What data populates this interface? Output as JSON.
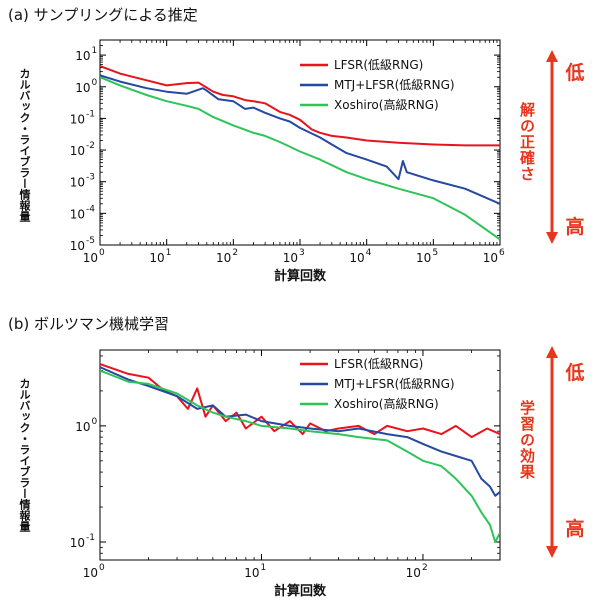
{
  "panels": [
    {
      "title": "(a) サンプリングによる推定",
      "side_label": "解の正確さ",
      "low_label": "低",
      "high_label": "高"
    },
    {
      "title": "(b) ボルツマン機械学習",
      "side_label": "学習の効果",
      "low_label": "低",
      "high_label": "高"
    }
  ],
  "chart_data": [
    {
      "type": "line",
      "xlabel": "計算回数",
      "ylabel": "カルバック・ライブラー情報量",
      "xscale": "log",
      "yscale": "log",
      "xlim": [
        1,
        1000000
      ],
      "ylim": [
        1e-05,
        30
      ],
      "x_ticks": [
        {
          "value": 1,
          "base": "10",
          "exp": "0"
        },
        {
          "value": 10,
          "base": "10",
          "exp": "1"
        },
        {
          "value": 100,
          "base": "10",
          "exp": "2"
        },
        {
          "value": 1000,
          "base": "10",
          "exp": "3"
        },
        {
          "value": 10000,
          "base": "10",
          "exp": "4"
        },
        {
          "value": 100000,
          "base": "10",
          "exp": "5"
        },
        {
          "value": 1000000,
          "base": "10",
          "exp": "6"
        }
      ],
      "y_ticks": [
        {
          "value": 10,
          "base": "10",
          "exp": "1"
        },
        {
          "value": 1,
          "base": "10",
          "exp": "0"
        },
        {
          "value": 0.1,
          "base": "10",
          "exp": "-1"
        },
        {
          "value": 0.01,
          "base": "10",
          "exp": "-2"
        },
        {
          "value": 0.001,
          "base": "10",
          "exp": "-3"
        },
        {
          "value": 0.0001,
          "base": "10",
          "exp": "-4"
        },
        {
          "value": 1e-05,
          "base": "10",
          "exp": "-5"
        }
      ],
      "legend_position": "top-right",
      "series": [
        {
          "name": "LFSR(低級RNG)",
          "color": "#e8141c",
          "x": [
            1,
            2,
            5,
            10,
            20,
            30,
            50,
            70,
            100,
            150,
            200,
            300,
            500,
            700,
            1000,
            1500,
            2000,
            3000,
            5000,
            10000,
            30000,
            100000,
            300000,
            1000000
          ],
          "y": [
            4.5,
            2.6,
            1.6,
            1.1,
            1.3,
            1.35,
            0.7,
            0.55,
            0.5,
            0.38,
            0.35,
            0.3,
            0.16,
            0.13,
            0.09,
            0.045,
            0.035,
            0.028,
            0.025,
            0.02,
            0.017,
            0.015,
            0.014,
            0.014
          ]
        },
        {
          "name": "MTJ+LFSR(低級RNG)",
          "color": "#2549a0",
          "x": [
            1,
            2,
            5,
            10,
            20,
            35,
            40,
            60,
            100,
            150,
            200,
            300,
            500,
            700,
            1000,
            2000,
            3000,
            5000,
            10000,
            20000,
            30000,
            35000,
            40000,
            100000,
            300000,
            1000000
          ],
          "y": [
            2.3,
            1.45,
            0.9,
            0.7,
            0.6,
            0.9,
            0.75,
            0.4,
            0.35,
            0.2,
            0.22,
            0.15,
            0.1,
            0.08,
            0.05,
            0.025,
            0.015,
            0.008,
            0.005,
            0.003,
            0.0012,
            0.0045,
            0.002,
            0.0011,
            0.0006,
            0.0002
          ]
        },
        {
          "name": "Xoshiro(高級RNG)",
          "color": "#2fc45a",
          "x": [
            1,
            2,
            5,
            10,
            20,
            30,
            50,
            100,
            200,
            300,
            500,
            1000,
            2000,
            5000,
            10000,
            30000,
            100000,
            300000,
            1000000
          ],
          "y": [
            2.0,
            1.1,
            0.55,
            0.35,
            0.25,
            0.2,
            0.11,
            0.06,
            0.035,
            0.028,
            0.018,
            0.009,
            0.005,
            0.002,
            0.0012,
            0.0006,
            0.0003,
            9e-05,
            1.5e-05
          ]
        }
      ]
    },
    {
      "type": "line",
      "xlabel": "計算回数",
      "ylabel": "カルバック・ライブラー情報量",
      "xscale": "log",
      "yscale": "log",
      "xlim": [
        1,
        300
      ],
      "ylim": [
        0.07,
        4.5
      ],
      "x_ticks": [
        {
          "value": 1,
          "base": "10",
          "exp": "0"
        },
        {
          "value": 10,
          "base": "10",
          "exp": "1"
        },
        {
          "value": 100,
          "base": "10",
          "exp": "2"
        }
      ],
      "y_ticks": [
        {
          "value": 1,
          "base": "10",
          "exp": "0"
        },
        {
          "value": 0.1,
          "base": "10",
          "exp": "-1"
        }
      ],
      "legend_position": "top-right",
      "series": [
        {
          "name": "LFSR(低級RNG)",
          "color": "#e8141c",
          "x": [
            1,
            1.5,
            2,
            2.5,
            3,
            3.5,
            4,
            4.5,
            5,
            6,
            7,
            8,
            10,
            12,
            15,
            18,
            20,
            25,
            30,
            40,
            50,
            60,
            80,
            100,
            130,
            160,
            200,
            250,
            300
          ],
          "y": [
            3.4,
            2.8,
            2.6,
            2.0,
            1.8,
            1.4,
            2.1,
            1.2,
            1.5,
            1.1,
            1.3,
            0.95,
            1.2,
            0.9,
            1.1,
            0.85,
            1.05,
            0.9,
            0.95,
            1.0,
            0.85,
            1.0,
            0.9,
            0.95,
            0.85,
            1.0,
            0.8,
            0.95,
            0.85
          ]
        },
        {
          "name": "MTJ+LFSR(低級RNG)",
          "color": "#2549a0",
          "x": [
            1,
            1.5,
            2,
            3,
            4,
            5,
            6,
            8,
            10,
            15,
            20,
            30,
            40,
            60,
            80,
            100,
            130,
            160,
            200,
            230,
            260,
            280,
            300
          ],
          "y": [
            3.2,
            2.5,
            2.2,
            1.8,
            1.4,
            1.5,
            1.2,
            1.25,
            1.1,
            1.0,
            0.95,
            0.9,
            0.95,
            0.85,
            0.8,
            0.7,
            0.6,
            0.55,
            0.5,
            0.35,
            0.3,
            0.25,
            0.27
          ]
        },
        {
          "name": "Xoshiro(高級RNG)",
          "color": "#2fc45a",
          "x": [
            1,
            1.5,
            2,
            3,
            4,
            5,
            6,
            8,
            10,
            15,
            20,
            30,
            40,
            60,
            80,
            100,
            130,
            160,
            200,
            230,
            260,
            280,
            300
          ],
          "y": [
            3.0,
            2.4,
            2.3,
            1.9,
            1.5,
            1.3,
            1.2,
            1.1,
            1.0,
            0.95,
            0.9,
            0.85,
            0.8,
            0.75,
            0.6,
            0.5,
            0.45,
            0.35,
            0.25,
            0.18,
            0.14,
            0.1,
            0.12
          ]
        }
      ]
    }
  ]
}
